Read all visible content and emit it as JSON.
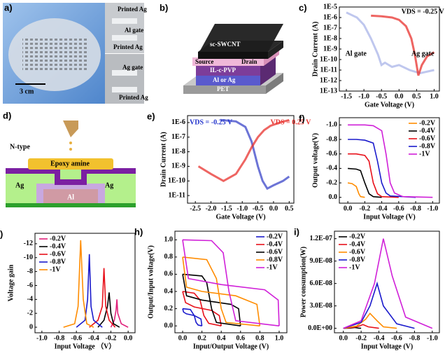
{
  "panels": {
    "a": {
      "label": "a)",
      "scale": "3 cm",
      "texts": [
        "Printed Ag",
        "Al gate",
        "Printed Ag",
        "Ag gate",
        "Printed Ag"
      ]
    },
    "b": {
      "label": "b)",
      "texts": [
        "sc-SWCNT",
        "Source",
        "Drain",
        "IL-c-PVP",
        "Al or Ag",
        "PET"
      ]
    },
    "d": {
      "label": "d)",
      "texts": [
        "N-type",
        "Epoxy amine",
        "Ag",
        "Ag",
        "Al"
      ]
    }
  },
  "chart_data": [
    {
      "type": "line",
      "label": "c)",
      "xlabel": "Gate Voltage (V)",
      "ylabel": "Drain Current (A)",
      "ylog": true,
      "xlim": [
        -1.7,
        1.15
      ],
      "xticks": [
        -1.5,
        {
          "value": -1,
          "label": "-1.0"
        },
        -0.5,
        {
          "value": 0,
          "label": "0.0"
        },
        0.5,
        {
          "value": 1,
          "label": "1.0"
        }
      ],
      "ylim": [
        1e-13,
        1e-05
      ],
      "yticks": [
        {
          "value": 1e-05,
          "label": "1E-5"
        },
        {
          "value": 1e-06,
          "label": "1E-6"
        },
        {
          "value": 1e-07,
          "label": "1E-7"
        },
        {
          "value": 1e-08,
          "label": "1E-8"
        },
        {
          "value": 1e-09,
          "label": "1E-9"
        },
        {
          "value": 1e-10,
          "label": "1E-10"
        },
        {
          "value": 1e-11,
          "label": "1E-11"
        },
        {
          "value": 1e-12,
          "label": "1E-12"
        },
        {
          "value": 1e-13,
          "label": "1E-13"
        }
      ],
      "annotations": [
        {
          "text": "VDS = -0.25 V",
          "color": "#000000"
        },
        {
          "text": "Al gate",
          "color": "#000000"
        },
        {
          "text": "Ag gate",
          "color": "#000000"
        }
      ],
      "series": [
        {
          "color": "#aab4e8",
          "x": [
            -1.5,
            -1.2,
            -1.0,
            -0.8,
            -0.6,
            -0.5,
            -0.4,
            -0.2,
            0,
            0.3,
            0.6,
            1.0
          ],
          "values": [
            3e-06,
            1e-06,
            2e-07,
            1e-08,
            3e-10,
            3e-11,
            5e-11,
            2e-11,
            3e-11,
            1e-11,
            5e-12,
            1e-11
          ]
        },
        {
          "color": "#e8322e",
          "x": [
            -0.8,
            -0.5,
            -0.2,
            0,
            0.2,
            0.35,
            0.45,
            0.55,
            0.65,
            0.8,
            1.0
          ],
          "values": [
            1.5e-06,
            1.3e-06,
            1e-06,
            6e-07,
            1.5e-07,
            1e-08,
            3e-10,
            3e-12,
            3e-11,
            2e-10,
            5e-10
          ]
        }
      ]
    },
    {
      "type": "line",
      "label": "e)",
      "xlabel": "Gate Voltage (V)",
      "ylabel": "Drain Current (A)",
      "ylog": true,
      "xlim": [
        -2.75,
        0.65
      ],
      "xticks": [
        -2.5,
        {
          "value": -2,
          "label": "-2.0"
        },
        -1.5,
        {
          "value": -1,
          "label": "-1.0"
        },
        -0.5,
        {
          "value": 0,
          "label": "0.0"
        },
        0.5
      ],
      "ylim": [
        3e-12,
        3e-06
      ],
      "yticks": [
        {
          "value": 1e-06,
          "label": "1E-6"
        },
        {
          "value": 1e-07,
          "label": "1E-7"
        },
        {
          "value": 1e-08,
          "label": "1E-8"
        },
        {
          "value": 1e-09,
          "label": "1E-9"
        },
        {
          "value": 1e-10,
          "label": "1E-10"
        },
        {
          "value": 1e-11,
          "label": "1E-11"
        }
      ],
      "annotations": [
        {
          "text": "VDS = -0.25 V",
          "color": "#2233cc"
        },
        {
          "text": "VDS = 0.25 V",
          "color": "#e8322e"
        }
      ],
      "series": [
        {
          "color": "#3b45c8",
          "x": [
            -1.7,
            -1.2,
            -0.9,
            -0.7,
            -0.5,
            -0.35,
            -0.2,
            0,
            0.3,
            0.5
          ],
          "values": [
            1.5e-06,
            1.2e-06,
            5e-07,
            5e-08,
            1e-09,
            1e-10,
            3e-11,
            5e-11,
            1e-10,
            2e-10
          ]
        },
        {
          "color": "#e8322e",
          "x": [
            -2.4,
            -2.0,
            -1.6,
            -1.2,
            -0.9,
            -0.7,
            -0.5,
            -0.3,
            -0.1,
            0.2,
            0.5
          ],
          "values": [
            1e-09,
            3e-10,
            1e-10,
            3e-10,
            3e-09,
            2e-08,
            1e-07,
            3e-07,
            6e-07,
            1e-06,
            1.5e-06
          ]
        }
      ]
    },
    {
      "type": "line",
      "label": "f)",
      "xlabel": "Input Voltage (V)",
      "ylabel": "Output voltage(V)",
      "legend": "upper right",
      "xlim": [
        0.1,
        -1.08
      ],
      "xticks": [
        {
          "value": 0,
          "label": "0.0"
        },
        -0.2,
        -0.4,
        -0.6,
        -0.8,
        {
          "value": -1,
          "label": "-1.0"
        }
      ],
      "ylim": [
        0.08,
        -1.1
      ],
      "yticks": [
        {
          "value": -1,
          "label": "-1.0"
        },
        -0.8,
        -0.6,
        -0.4,
        -0.2,
        {
          "value": 0,
          "label": "0.0"
        }
      ],
      "series": [
        {
          "name": "-0.2V",
          "color": "#ff8c00",
          "x": [
            0,
            -0.05,
            -0.1,
            -0.13,
            -0.15,
            -0.2
          ],
          "values": [
            -0.2,
            -0.19,
            -0.15,
            -0.05,
            -0.01,
            0
          ]
        },
        {
          "name": "-0.4V",
          "color": "#000000",
          "x": [
            0,
            -0.1,
            -0.15,
            -0.2,
            -0.25,
            -0.3,
            -0.4
          ],
          "values": [
            -0.4,
            -0.39,
            -0.37,
            -0.2,
            -0.05,
            -0.01,
            0
          ]
        },
        {
          "name": "-0.6V",
          "color": "#e8101a",
          "x": [
            0,
            -0.1,
            -0.2,
            -0.25,
            -0.3,
            -0.35,
            -0.4,
            -0.6
          ],
          "values": [
            -0.6,
            -0.6,
            -0.58,
            -0.5,
            -0.2,
            -0.05,
            -0.01,
            0
          ]
        },
        {
          "name": "-0.8V",
          "color": "#1a1acc",
          "x": [
            0,
            -0.1,
            -0.2,
            -0.3,
            -0.35,
            -0.4,
            -0.45,
            -0.5,
            -0.8
          ],
          "values": [
            -0.8,
            -0.8,
            -0.79,
            -0.75,
            -0.5,
            -0.2,
            -0.06,
            -0.02,
            0
          ]
        },
        {
          "name": "-1V",
          "color": "#d020d8",
          "x": [
            0,
            -0.1,
            -0.2,
            -0.3,
            -0.4,
            -0.45,
            -0.5,
            -0.55,
            -0.65,
            -1.0
          ],
          "values": [
            -1,
            -1,
            -1,
            -0.99,
            -0.92,
            -0.6,
            -0.2,
            -0.06,
            -0.01,
            0
          ]
        }
      ]
    },
    {
      "type": "line",
      "label": "g)",
      "xlabel": "Input Voltage （V）",
      "ylabel": "Voltage gain",
      "legend": "upper left",
      "xlim": [
        -1.08,
        0.08
      ],
      "xticks": [
        {
          "value": -1,
          "label": "-1.0"
        },
        -0.8,
        -0.6,
        -0.4,
        -0.2,
        {
          "value": 0,
          "label": "0.0"
        }
      ],
      "ylim": [
        0.8,
        -13.5
      ],
      "yticks": [
        -12,
        -10,
        -8,
        -6,
        -4,
        -2,
        0
      ],
      "series": [
        {
          "name": "-0.2V",
          "color": "#e0207a",
          "x": [
            -0.2,
            -0.16,
            -0.14,
            -0.13,
            -0.12,
            -0.08,
            0
          ],
          "values": [
            0,
            -1,
            -2.5,
            -4,
            -2,
            -0.5,
            0
          ]
        },
        {
          "name": "-0.4V",
          "color": "#000000",
          "x": [
            -0.35,
            -0.28,
            -0.24,
            -0.22,
            -0.2,
            -0.17,
            -0.1
          ],
          "values": [
            0,
            -1,
            -3,
            -5,
            -2,
            -0.5,
            0
          ]
        },
        {
          "name": "-0.6V",
          "color": "#e8101a",
          "x": [
            -0.45,
            -0.35,
            -0.3,
            -0.28,
            -0.26,
            -0.22,
            -0.15
          ],
          "values": [
            0,
            -1,
            -3,
            -8.5,
            -3,
            -1,
            0
          ]
        },
        {
          "name": "-0.8V",
          "color": "#1a1acc",
          "x": [
            -0.6,
            -0.5,
            -0.47,
            -0.45,
            -0.43,
            -0.4,
            -0.3
          ],
          "values": [
            0,
            -1,
            -4,
            -10.5,
            -3,
            -1,
            0
          ]
        },
        {
          "name": "-1V",
          "color": "#ff8c00",
          "x": [
            -0.75,
            -0.62,
            -0.58,
            -0.55,
            -0.52,
            -0.48,
            -0.4
          ],
          "values": [
            0,
            -0.5,
            -3,
            -12.5,
            -4,
            -0.5,
            0
          ]
        }
      ]
    },
    {
      "type": "line",
      "label": "h)",
      "xlabel": "Input/Output Voltage (V)",
      "ylabel": "Output/Input voltage(V)",
      "legend": "upper right",
      "xlim": [
        -0.08,
        1.08
      ],
      "xticks": [
        {
          "value": 0,
          "label": "0.0"
        },
        0.2,
        0.4,
        0.6,
        0.8,
        {
          "value": 1,
          "label": "1.0"
        }
      ],
      "ylim": [
        -0.08,
        1.1
      ],
      "yticks": [
        {
          "value": 0,
          "label": "0.0"
        },
        0.2,
        0.4,
        0.6,
        0.8,
        {
          "value": 1,
          "label": "1.0"
        }
      ],
      "series": [
        {
          "name": "-0.2V",
          "color": "#1a1acc",
          "x": [
            0,
            0.08,
            0.12,
            0.14,
            0.16,
            0.2,
            null,
            0.2,
            0.19,
            0.12,
            0.04,
            0.01,
            0
          ],
          "values": [
            0.2,
            0.19,
            0.12,
            0.04,
            0.01,
            0,
            null,
            0,
            0.08,
            0.12,
            0.14,
            0.16,
            0.2
          ]
        },
        {
          "name": "-0.4V",
          "color": "#e8101a",
          "x": [
            0,
            0.12,
            0.18,
            0.22,
            0.27,
            0.4,
            null,
            0.4,
            0.38,
            0.3,
            0.12,
            0.03,
            0
          ],
          "values": [
            0.4,
            0.38,
            0.3,
            0.12,
            0.03,
            0,
            null,
            0,
            0.12,
            0.18,
            0.22,
            0.27,
            0.4
          ]
        },
        {
          "name": "-0.6V",
          "color": "#000000",
          "x": [
            0,
            0.2,
            0.25,
            0.3,
            0.35,
            0.6,
            null,
            0.6,
            0.58,
            0.5,
            0.2,
            0.04,
            0
          ],
          "values": [
            0.6,
            0.58,
            0.5,
            0.2,
            0.04,
            0,
            null,
            0,
            0.2,
            0.25,
            0.3,
            0.35,
            0.6
          ]
        },
        {
          "name": "-0.8V",
          "color": "#ff8c00",
          "x": [
            0,
            0.25,
            0.35,
            0.4,
            0.45,
            0.8,
            null,
            0.8,
            0.77,
            0.55,
            0.2,
            0.04,
            0
          ],
          "values": [
            0.8,
            0.77,
            0.55,
            0.2,
            0.04,
            0,
            null,
            0,
            0.25,
            0.35,
            0.4,
            0.45,
            0.8
          ]
        },
        {
          "name": "-1V",
          "color": "#d020d8",
          "x": [
            0,
            0.3,
            0.42,
            0.48,
            0.55,
            1.0,
            null,
            1.0,
            0.99,
            0.85,
            0.4,
            0.06,
            0
          ],
          "values": [
            1,
            0.99,
            0.85,
            0.4,
            0.06,
            0,
            null,
            0,
            0.3,
            0.42,
            0.48,
            0.55,
            1.0
          ]
        }
      ]
    },
    {
      "type": "line",
      "label": "i)",
      "xlabel": "Input Voltage (V)",
      "ylabel": "Power consumption(W)",
      "legend": "upper left",
      "xlim": [
        0.1,
        -1.08
      ],
      "xticks": [
        {
          "value": 0,
          "label": "0.0"
        },
        -0.2,
        -0.4,
        -0.6,
        -0.8,
        {
          "value": -1,
          "label": "-1.0"
        }
      ],
      "ylim": [
        -6e-09,
        1.3e-07
      ],
      "yticks": [
        {
          "value": 0,
          "label": "0.0E+00"
        },
        {
          "value": 3e-08,
          "label": "3.0E-08"
        },
        {
          "value": 6e-08,
          "label": "6.0E-08"
        },
        {
          "value": 9e-08,
          "label": "9.0E-08"
        },
        {
          "value": 1.2e-07,
          "label": "1.2E-07"
        }
      ],
      "series": [
        {
          "name": "-0.2V",
          "color": "#000000",
          "x": [
            0,
            -0.08,
            -0.13,
            -0.17,
            -0.2
          ],
          "values": [
            0,
            3e-10,
            1e-09,
            3e-10,
            0
          ]
        },
        {
          "name": "-0.4V",
          "color": "#e8101a",
          "x": [
            0,
            -0.1,
            -0.18,
            -0.22,
            -0.28,
            -0.4
          ],
          "values": [
            0,
            1e-09,
            3e-09,
            5e-09,
            2e-09,
            0
          ]
        },
        {
          "name": "-0.6V",
          "color": "#ff8c00",
          "x": [
            0,
            -0.15,
            -0.25,
            -0.3,
            -0.38,
            -0.45,
            -0.6
          ],
          "values": [
            0,
            3e-09,
            1.2e-08,
            2e-08,
            1e-08,
            2e-09,
            0
          ]
        },
        {
          "name": "-0.8V",
          "color": "#1a1acc",
          "x": [
            0,
            -0.2,
            -0.3,
            -0.38,
            -0.45,
            -0.6,
            -0.8
          ],
          "values": [
            0,
            8e-09,
            3e-08,
            6e-08,
            3e-08,
            6e-09,
            0
          ]
        },
        {
          "name": "-1V",
          "color": "#d020d8",
          "x": [
            0,
            -0.2,
            -0.35,
            -0.45,
            -0.55,
            -0.7,
            -1.0
          ],
          "values": [
            0,
            1e-08,
            6e-08,
            1.2e-07,
            7e-08,
            1.5e-08,
            0
          ]
        }
      ]
    }
  ]
}
